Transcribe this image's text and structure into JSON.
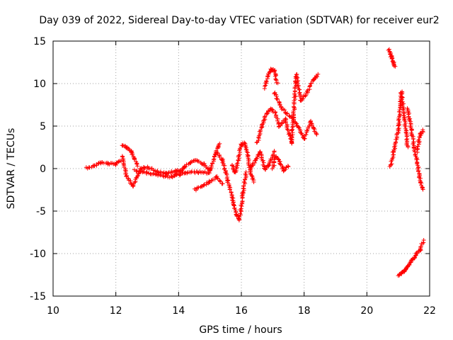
{
  "chart_data": {
    "type": "scatter",
    "title": "Day 039 of 2022, Sidereal Day-to-day VTEC variation (SDTVAR) for receiver eur2",
    "xlabel": "GPS time / hours",
    "ylabel": "SDTVAR / TECUs",
    "xlim": [
      10,
      22
    ],
    "ylim": [
      -15,
      15
    ],
    "xticks": [
      "10",
      "12",
      "14",
      "16",
      "18",
      "20",
      "22"
    ],
    "yticks": [
      "-15",
      "-10",
      "-5",
      "0",
      "5",
      "10",
      "15"
    ],
    "grid": true,
    "marker": "+",
    "color": "#ff0000",
    "series": [
      {
        "name": "SDTVAR",
        "segments": [
          {
            "x": [
              11.05,
              11.3,
              11.5,
              11.75,
              12.0,
              12.15
            ],
            "y": [
              0.1,
              0.3,
              0.7,
              0.6,
              0.5,
              0.9
            ]
          },
          {
            "x": [
              12.2,
              12.35,
              12.5,
              12.6,
              12.7
            ],
            "y": [
              2.8,
              2.5,
              2.0,
              1.2,
              0.3
            ]
          },
          {
            "x": [
              12.2,
              12.35,
              12.55,
              12.8,
              13.0,
              13.3,
              13.6,
              13.9,
              14.1
            ],
            "y": [
              1.5,
              -1.0,
              -2.0,
              0.0,
              0.2,
              -0.3,
              -0.6,
              -0.3,
              -0.2
            ]
          },
          {
            "x": [
              12.6,
              13.0,
              13.4,
              13.8,
              14.2,
              14.6,
              15.0
            ],
            "y": [
              -0.2,
              -0.5,
              -0.8,
              -1.0,
              -0.5,
              -0.4,
              -0.5
            ]
          },
          {
            "x": [
              13.9,
              14.2,
              14.5,
              14.8,
              15.0,
              15.2,
              15.3
            ],
            "y": [
              -0.7,
              0.2,
              1.0,
              0.5,
              -0.3,
              2.0,
              3.0
            ]
          },
          {
            "x": [
              14.5,
              14.8,
              15.0,
              15.2,
              15.4
            ],
            "y": [
              -2.5,
              -2.0,
              -1.5,
              -1.0,
              -1.8
            ]
          },
          {
            "x": [
              15.2,
              15.4,
              15.5,
              15.6,
              15.75,
              15.85,
              15.95,
              16.05,
              16.15
            ],
            "y": [
              2.0,
              1.0,
              -0.5,
              -2.0,
              -4.0,
              -5.5,
              -6.0,
              -3.0,
              -0.5
            ]
          },
          {
            "x": [
              15.7,
              15.8,
              15.9,
              16.0,
              16.1,
              16.2,
              16.3,
              16.4
            ],
            "y": [
              0.5,
              -0.5,
              1.0,
              2.8,
              3.0,
              1.5,
              -0.5,
              -1.5
            ]
          },
          {
            "x": [
              16.3,
              16.45,
              16.6,
              16.75,
              16.9,
              17.05
            ],
            "y": [
              0.0,
              1.0,
              2.0,
              -0.1,
              0.5,
              2.0
            ]
          },
          {
            "x": [
              16.5,
              16.65,
              16.8,
              16.95,
              17.1,
              17.2
            ],
            "y": [
              3.0,
              5.0,
              6.5,
              7.0,
              6.5,
              5.0
            ]
          },
          {
            "x": [
              16.75,
              16.85,
              16.95,
              17.05,
              17.15
            ],
            "y": [
              9.5,
              11.0,
              11.7,
              11.5,
              10.0
            ]
          },
          {
            "x": [
              17.05,
              17.3,
              17.6,
              17.8,
              18.0,
              18.2,
              18.4
            ],
            "y": [
              9.0,
              7.0,
              6.0,
              5.0,
              3.5,
              5.5,
              4.0
            ]
          },
          {
            "x": [
              17.2,
              17.4,
              17.6,
              17.75,
              17.9,
              18.1,
              18.3,
              18.45
            ],
            "y": [
              5.0,
              5.8,
              3.0,
              11.0,
              8.0,
              9.0,
              10.5,
              11.0
            ]
          },
          {
            "x": [
              17.0,
              17.1,
              17.25,
              17.35,
              17.5
            ],
            "y": [
              0.0,
              1.5,
              0.5,
              -0.2,
              0.3
            ]
          },
          {
            "x": [
              20.7,
              20.75,
              20.8,
              20.85,
              20.9
            ],
            "y": [
              14.0,
              13.5,
              13.0,
              12.5,
              12.0
            ]
          },
          {
            "x": [
              20.75,
              20.85,
              21.0,
              21.1,
              21.2,
              21.3
            ],
            "y": [
              0.2,
              2.0,
              4.5,
              9.0,
              6.0,
              2.5
            ]
          },
          {
            "x": [
              21.3,
              21.4,
              21.5,
              21.6,
              21.7,
              21.8
            ],
            "y": [
              7.0,
              5.0,
              2.5,
              1.0,
              -1.5,
              -2.5
            ]
          },
          {
            "x": [
              21.6,
              21.7,
              21.8
            ],
            "y": [
              2.0,
              4.0,
              4.5
            ]
          },
          {
            "x": [
              21.0,
              21.1,
              21.2,
              21.3,
              21.4,
              21.5,
              21.6,
              21.7,
              21.8
            ],
            "y": [
              -12.5,
              -12.3,
              -12.0,
              -11.5,
              -11.0,
              -10.5,
              -10.0,
              -9.5,
              -8.5
            ]
          }
        ]
      }
    ]
  }
}
